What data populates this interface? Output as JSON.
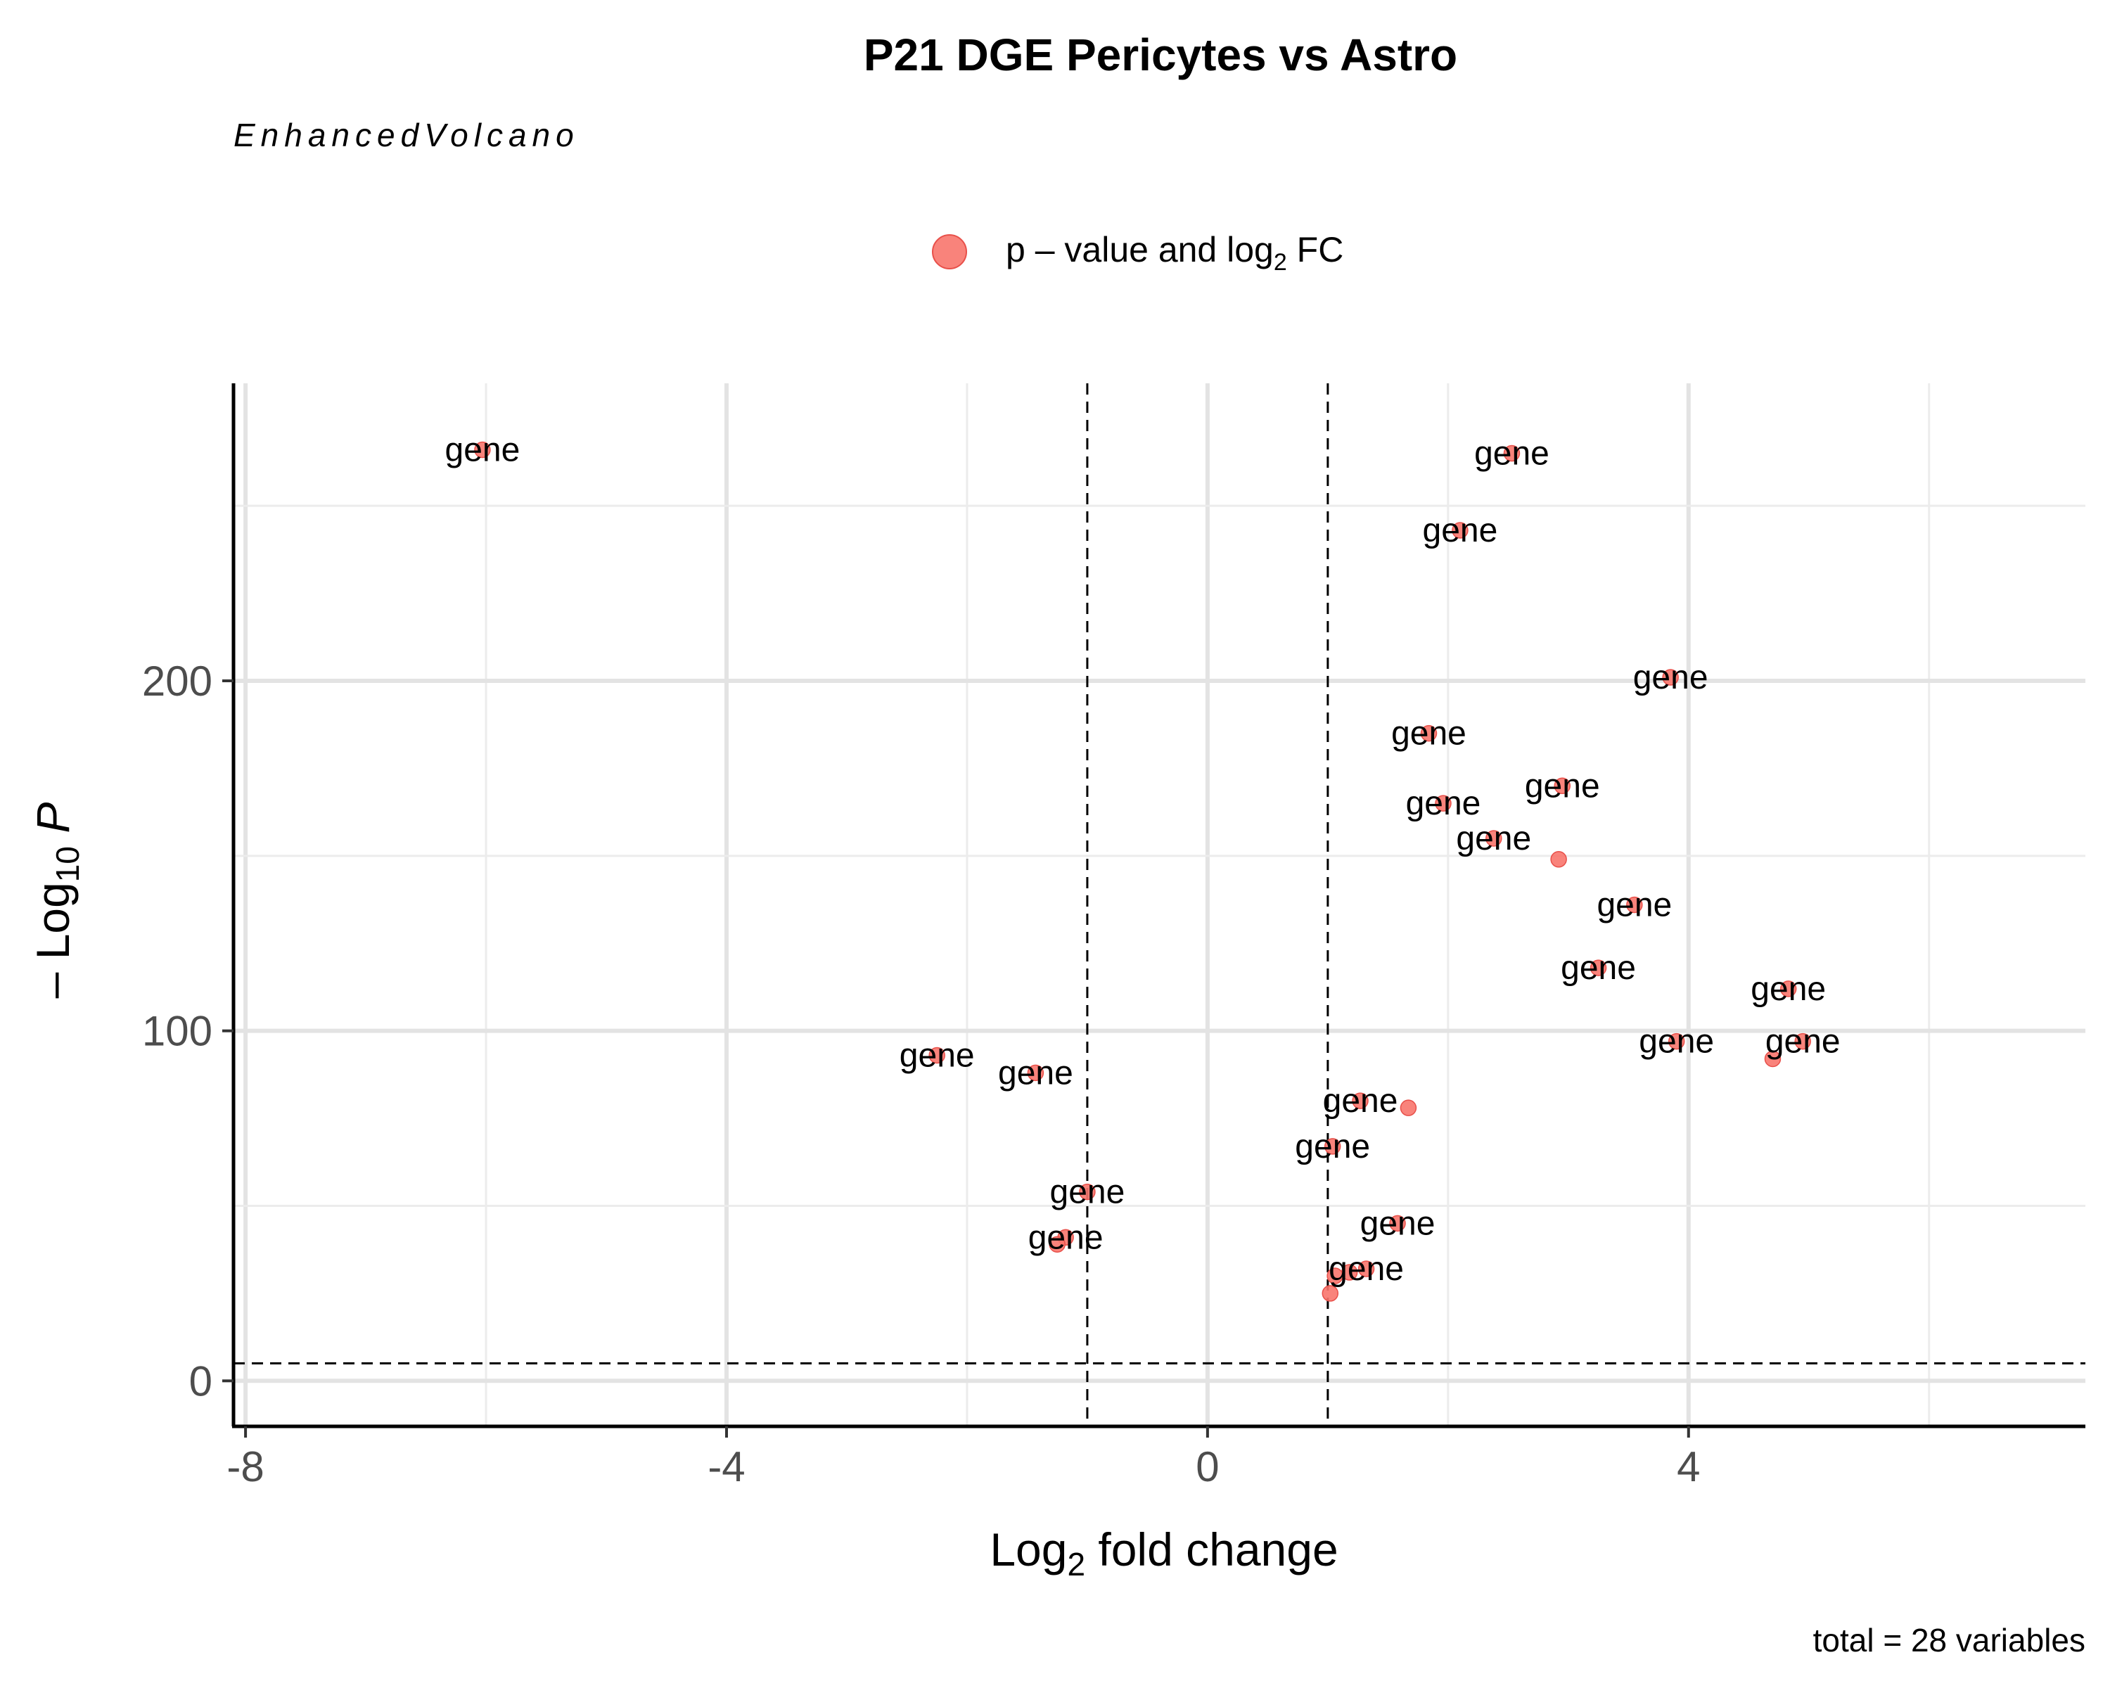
{
  "chart_data": {
    "type": "scatter",
    "title": "P21 DGE Pericytes vs Astro",
    "subtitle": "EnhancedVolcano",
    "legend": {
      "label_pre": "p – value and log",
      "label_sub": "2",
      "label_post": " FC",
      "color": "#f8766d",
      "position": "top"
    },
    "xlabel_pre": "Log",
    "xlabel_sub": "2",
    "xlabel_post": " fold change",
    "ylabel_pre": "– Log",
    "ylabel_sub": "10",
    "ylabel_post": " P",
    "xlim": [
      -8.1,
      7.3
    ],
    "ylim": [
      -13,
      285
    ],
    "xticks": [
      -8,
      -4,
      0,
      4
    ],
    "yticks": [
      0,
      100,
      200
    ],
    "cutoffs": {
      "x": [
        -1,
        1
      ],
      "y": 5
    },
    "caption": "total = 28 variables",
    "point_color": "#f8766d",
    "points": [
      {
        "x": -6.03,
        "y": 266,
        "label": "gene"
      },
      {
        "x": 2.53,
        "y": 265,
        "label": "gene"
      },
      {
        "x": 2.1,
        "y": 243,
        "label": "gene"
      },
      {
        "x": 3.85,
        "y": 201,
        "label": "gene"
      },
      {
        "x": 1.84,
        "y": 185,
        "label": "gene"
      },
      {
        "x": 2.95,
        "y": 170,
        "label": "gene"
      },
      {
        "x": 1.96,
        "y": 165,
        "label": "gene"
      },
      {
        "x": 2.38,
        "y": 155,
        "label": "gene"
      },
      {
        "x": 2.92,
        "y": 149,
        "label": ""
      },
      {
        "x": 3.55,
        "y": 136,
        "label": "gene"
      },
      {
        "x": 3.25,
        "y": 118,
        "label": "gene"
      },
      {
        "x": 4.83,
        "y": 112,
        "label": "gene"
      },
      {
        "x": 3.9,
        "y": 97,
        "label": "gene"
      },
      {
        "x": 4.95,
        "y": 97,
        "label": "gene"
      },
      {
        "x": 4.7,
        "y": 92,
        "label": ""
      },
      {
        "x": -2.25,
        "y": 93,
        "label": "gene"
      },
      {
        "x": -1.43,
        "y": 88,
        "label": "gene"
      },
      {
        "x": 1.27,
        "y": 80,
        "label": "gene"
      },
      {
        "x": 1.67,
        "y": 78,
        "label": ""
      },
      {
        "x": 1.04,
        "y": 67,
        "label": "gene"
      },
      {
        "x": -1.0,
        "y": 54,
        "label": "gene"
      },
      {
        "x": -1.18,
        "y": 41,
        "label": "gene"
      },
      {
        "x": -1.25,
        "y": 39,
        "label": ""
      },
      {
        "x": 1.58,
        "y": 45,
        "label": "gene"
      },
      {
        "x": 1.32,
        "y": 32,
        "label": "gene"
      },
      {
        "x": 1.18,
        "y": 31,
        "label": ""
      },
      {
        "x": 1.06,
        "y": 30,
        "label": ""
      },
      {
        "x": 1.02,
        "y": 25,
        "label": ""
      }
    ]
  }
}
